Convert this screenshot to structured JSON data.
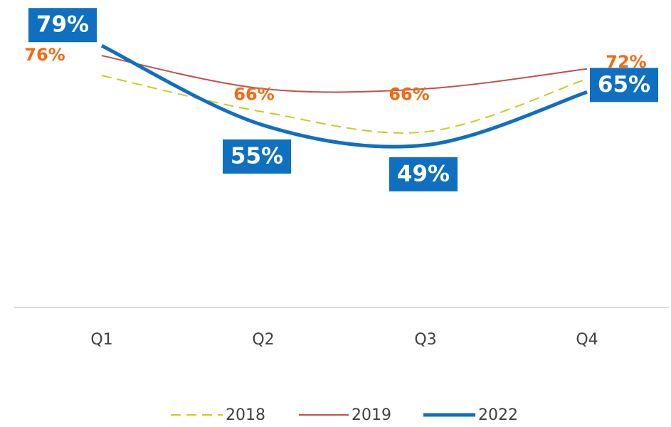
{
  "chart_data": {
    "type": "line",
    "categories": [
      "Q1",
      "Q2",
      "Q3",
      "Q4"
    ],
    "ylim": [
      0,
      90
    ],
    "grid": false,
    "series": [
      {
        "name": "2018",
        "color": "#c8cc1e",
        "dash": true,
        "width": 2,
        "values": [
          70,
          59,
          53,
          69
        ]
      },
      {
        "name": "2019",
        "color": "#c0504d",
        "dash": false,
        "width": 2,
        "values": [
          76,
          66,
          66,
          72
        ],
        "value_labels": [
          "76%",
          "66%",
          "66%",
          "72%"
        ]
      },
      {
        "name": "2022",
        "color": "#0f6fc0",
        "dash": false,
        "width": 5,
        "values": [
          79,
          55,
          49,
          65
        ],
        "value_labels": [
          "79%",
          "55%",
          "49%",
          "65%"
        ]
      }
    ]
  }
}
